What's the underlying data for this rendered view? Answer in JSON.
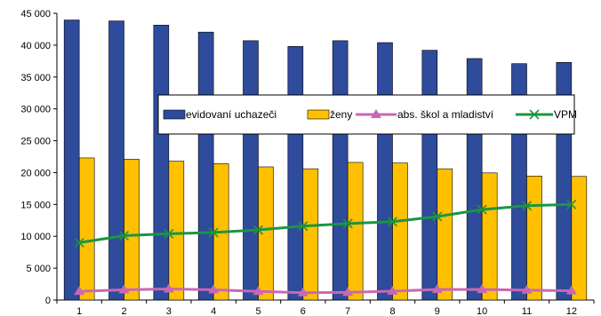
{
  "chart_data": {
    "type": "bar",
    "categories": [
      "1",
      "2",
      "3",
      "4",
      "5",
      "6",
      "7",
      "8",
      "9",
      "10",
      "11",
      "12"
    ],
    "series": [
      {
        "name": "evidovaní uchazeči",
        "kind": "bar",
        "color": "#2E4B9C",
        "values": [
          43950,
          43800,
          43150,
          42050,
          40700,
          39800,
          40700,
          40400,
          39200,
          37900,
          37100,
          37300
        ]
      },
      {
        "name": "ženy",
        "kind": "bar",
        "color": "#FFC000",
        "values": [
          22300,
          22100,
          21800,
          21400,
          20900,
          20600,
          21600,
          21500,
          20600,
          19950,
          19450,
          19400
        ]
      },
      {
        "name": "abs. škol a mladiství",
        "kind": "line",
        "color": "#C868B4",
        "marker": "triangle",
        "values": [
          1350,
          1600,
          1750,
          1600,
          1350,
          1150,
          1200,
          1400,
          1650,
          1650,
          1550,
          1450
        ]
      },
      {
        "name": "VPM",
        "kind": "line",
        "color": "#1A9641",
        "marker": "x",
        "values": [
          9000,
          10100,
          10400,
          10600,
          11000,
          11600,
          12000,
          12300,
          13100,
          14200,
          14800,
          15000
        ]
      }
    ],
    "yticks": [
      "0",
      "5 000",
      "10 000",
      "15 000",
      "20 000",
      "25 000",
      "30 000",
      "35 000",
      "40 000",
      "45 000"
    ],
    "ylim": [
      0,
      45000
    ],
    "legend_position": "middle",
    "grid": false
  }
}
